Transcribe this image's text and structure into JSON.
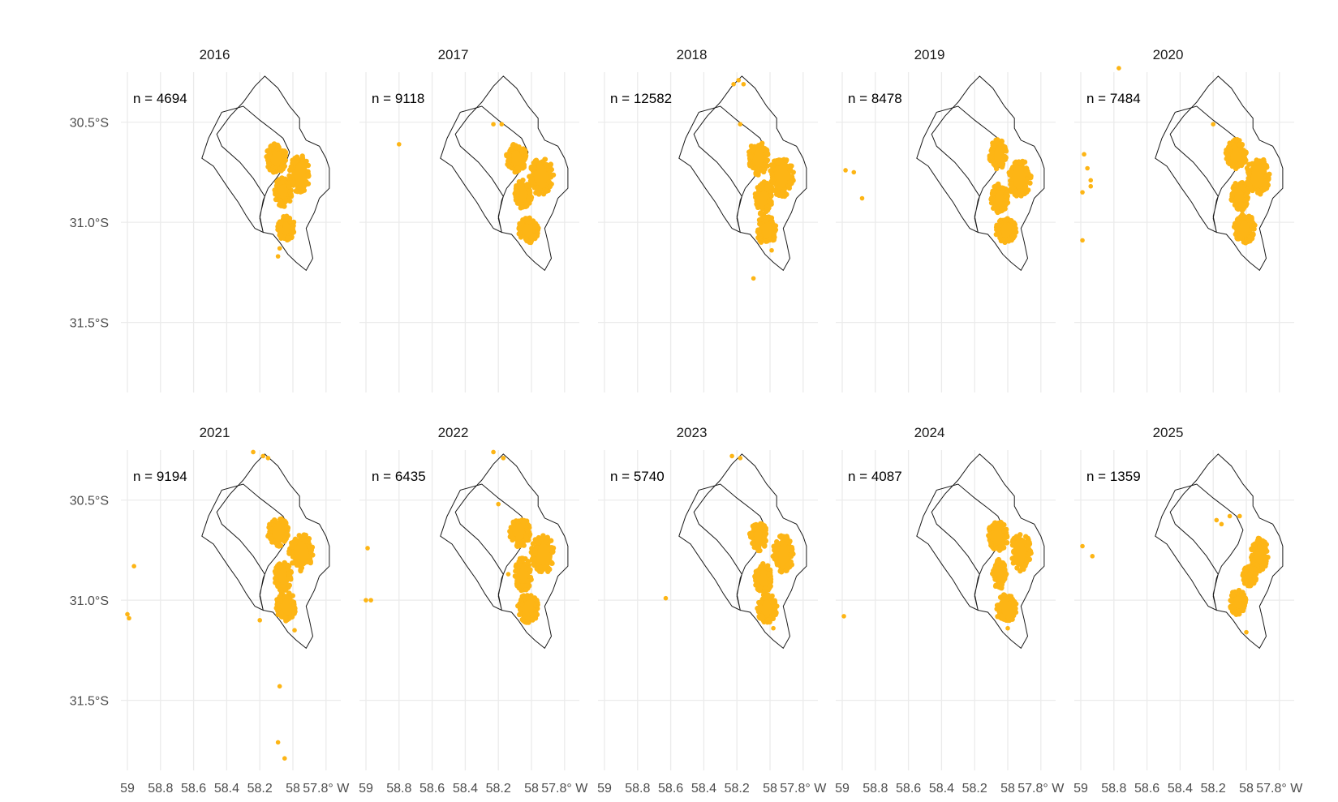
{
  "colors": {
    "points": "#FDB515",
    "grid": "#EBEBEB",
    "outline": "#1A1A1A"
  },
  "chart_data": {
    "type": "scatter",
    "facet_by": "year",
    "layout": "2 rows x 5 columns",
    "x_axis": {
      "ticks": [
        59,
        58.8,
        58.6,
        58.4,
        58.2,
        58,
        57.8
      ],
      "tick_labels": [
        "59",
        "58.8",
        "58.6",
        "58.4",
        "58.2",
        "58",
        "57.8° W"
      ],
      "range": [
        59.0,
        57.75
      ]
    },
    "y_axis": {
      "ticks": [
        30.5,
        31.0,
        31.5
      ],
      "tick_labels": [
        "30.5°S",
        "31.0°S",
        "31.5°S"
      ],
      "range": [
        30.25,
        31.85
      ]
    },
    "grid": true,
    "outline_polygon": [
      [
        58.17,
        30.27
      ],
      [
        58.09,
        30.33
      ],
      [
        58.02,
        30.42
      ],
      [
        57.96,
        30.48
      ],
      [
        57.96,
        30.53
      ],
      [
        57.92,
        30.59
      ],
      [
        57.84,
        30.62
      ],
      [
        57.8,
        30.68
      ],
      [
        57.78,
        30.73
      ],
      [
        57.78,
        30.83
      ],
      [
        57.84,
        30.88
      ],
      [
        57.87,
        30.95
      ],
      [
        57.92,
        31.03
      ],
      [
        57.9,
        31.1
      ],
      [
        57.88,
        31.18
      ],
      [
        57.92,
        31.24
      ],
      [
        57.98,
        31.2
      ],
      [
        58.03,
        31.16
      ],
      [
        58.08,
        31.1
      ],
      [
        58.12,
        31.06
      ],
      [
        58.18,
        31.05
      ],
      [
        58.2,
        30.98
      ],
      [
        58.18,
        30.89
      ],
      [
        58.15,
        30.83
      ],
      [
        58.1,
        30.78
      ],
      [
        58.05,
        30.72
      ],
      [
        58.02,
        30.65
      ],
      [
        58.06,
        30.58
      ],
      [
        58.12,
        30.54
      ],
      [
        58.2,
        30.49
      ],
      [
        58.3,
        30.42
      ],
      [
        58.43,
        30.45
      ],
      [
        58.51,
        30.58
      ],
      [
        58.55,
        30.68
      ],
      [
        58.48,
        30.72
      ],
      [
        58.39,
        30.83
      ],
      [
        58.33,
        30.9
      ],
      [
        58.28,
        30.97
      ],
      [
        58.23,
        31.03
      ],
      [
        58.18,
        31.05
      ],
      [
        58.2,
        30.97
      ],
      [
        58.17,
        30.87
      ],
      [
        58.24,
        30.78
      ],
      [
        58.32,
        30.7
      ],
      [
        58.43,
        30.62
      ],
      [
        58.46,
        30.56
      ],
      [
        58.38,
        30.47
      ],
      [
        58.3,
        30.4
      ],
      [
        58.23,
        30.32
      ]
    ],
    "panels": [
      {
        "year": "2016",
        "n_label": "n = 4694",
        "dense_regions": [
          [
            57.96,
            30.76,
            0.06,
            0.09
          ],
          [
            58.1,
            30.68,
            0.06,
            0.07
          ],
          [
            58.06,
            30.85,
            0.05,
            0.07
          ],
          [
            58.04,
            31.03,
            0.05,
            0.06
          ]
        ],
        "outliers": [
          [
            58.09,
            31.17
          ],
          [
            58.08,
            31.13
          ]
        ]
      },
      {
        "year": "2017",
        "n_label": "n = 9118",
        "dense_regions": [
          [
            57.94,
            30.77,
            0.07,
            0.09
          ],
          [
            58.09,
            30.68,
            0.06,
            0.07
          ],
          [
            58.05,
            30.86,
            0.05,
            0.07
          ],
          [
            58.02,
            31.04,
            0.06,
            0.06
          ]
        ],
        "outliers": [
          [
            58.8,
            30.61
          ],
          [
            58.23,
            30.51
          ],
          [
            58.18,
            30.51
          ]
        ]
      },
      {
        "year": "2018",
        "n_label": "n = 12582",
        "dense_regions": [
          [
            57.93,
            30.77,
            0.07,
            0.1
          ],
          [
            58.07,
            30.68,
            0.06,
            0.08
          ],
          [
            58.04,
            30.88,
            0.05,
            0.08
          ],
          [
            58.02,
            31.04,
            0.06,
            0.07
          ]
        ],
        "outliers": [
          [
            58.22,
            30.31
          ],
          [
            58.16,
            30.31
          ],
          [
            58.19,
            30.29
          ],
          [
            58.18,
            30.51
          ],
          [
            58.1,
            31.28
          ],
          [
            57.99,
            31.14
          ]
        ]
      },
      {
        "year": "2019",
        "n_label": "n = 8478",
        "dense_regions": [
          [
            57.93,
            30.78,
            0.07,
            0.09
          ],
          [
            58.06,
            30.66,
            0.05,
            0.07
          ],
          [
            58.05,
            30.88,
            0.05,
            0.07
          ],
          [
            58.01,
            31.04,
            0.06,
            0.06
          ]
        ],
        "outliers": [
          [
            58.98,
            30.74
          ],
          [
            58.93,
            30.75
          ],
          [
            58.88,
            30.88
          ]
        ]
      },
      {
        "year": "2020",
        "n_label": "n = 7484",
        "dense_regions": [
          [
            57.93,
            30.77,
            0.07,
            0.09
          ],
          [
            58.06,
            30.66,
            0.06,
            0.07
          ],
          [
            58.04,
            30.87,
            0.05,
            0.07
          ],
          [
            58.01,
            31.03,
            0.06,
            0.07
          ]
        ],
        "outliers": [
          [
            58.98,
            30.66
          ],
          [
            58.96,
            30.73
          ],
          [
            58.94,
            30.79
          ],
          [
            58.94,
            30.82
          ],
          [
            58.99,
            30.85
          ],
          [
            58.99,
            31.09
          ],
          [
            58.77,
            30.23
          ],
          [
            58.2,
            30.51
          ]
        ]
      },
      {
        "year": "2021",
        "n_label": "n = 9194",
        "dense_regions": [
          [
            57.95,
            30.76,
            0.07,
            0.09
          ],
          [
            58.09,
            30.66,
            0.06,
            0.07
          ],
          [
            58.06,
            30.88,
            0.05,
            0.07
          ],
          [
            58.04,
            31.03,
            0.06,
            0.07
          ]
        ],
        "outliers": [
          [
            58.96,
            30.83
          ],
          [
            59.0,
            31.07
          ],
          [
            58.99,
            31.09
          ],
          [
            58.24,
            30.26
          ],
          [
            58.18,
            30.28
          ],
          [
            58.15,
            30.29
          ],
          [
            58.08,
            31.43
          ],
          [
            58.09,
            31.71
          ],
          [
            58.05,
            31.79
          ],
          [
            58.2,
            31.1
          ],
          [
            57.99,
            31.15
          ]
        ]
      },
      {
        "year": "2022",
        "n_label": "n = 6435",
        "dense_regions": [
          [
            57.93,
            30.77,
            0.07,
            0.09
          ],
          [
            58.07,
            30.66,
            0.06,
            0.07
          ],
          [
            58.05,
            30.87,
            0.05,
            0.08
          ],
          [
            58.02,
            31.04,
            0.06,
            0.07
          ]
        ],
        "outliers": [
          [
            58.99,
            30.74
          ],
          [
            59.0,
            31.0
          ],
          [
            58.97,
            31.0
          ],
          [
            58.23,
            30.26
          ],
          [
            58.17,
            30.29
          ],
          [
            58.2,
            30.52
          ],
          [
            58.14,
            30.87
          ]
        ]
      },
      {
        "year": "2023",
        "n_label": "n = 5740",
        "dense_regions": [
          [
            57.92,
            30.77,
            0.06,
            0.09
          ],
          [
            58.07,
            30.68,
            0.05,
            0.07
          ],
          [
            58.04,
            30.89,
            0.05,
            0.07
          ],
          [
            58.02,
            31.04,
            0.06,
            0.07
          ]
        ],
        "outliers": [
          [
            58.63,
            30.99
          ],
          [
            58.23,
            30.28
          ],
          [
            58.18,
            30.29
          ],
          [
            57.98,
            31.14
          ]
        ]
      },
      {
        "year": "2024",
        "n_label": "n = 4087",
        "dense_regions": [
          [
            57.92,
            30.76,
            0.06,
            0.09
          ],
          [
            58.06,
            30.68,
            0.06,
            0.07
          ],
          [
            58.05,
            30.87,
            0.04,
            0.07
          ],
          [
            58.01,
            31.04,
            0.06,
            0.07
          ]
        ],
        "outliers": [
          [
            58.99,
            31.08
          ],
          [
            58.0,
            31.14
          ]
        ]
      },
      {
        "year": "2025",
        "n_label": "n = 1359",
        "dense_regions": [
          [
            57.92,
            30.77,
            0.05,
            0.08
          ],
          [
            58.05,
            31.01,
            0.05,
            0.06
          ],
          [
            57.98,
            30.88,
            0.04,
            0.05
          ]
        ],
        "outliers": [
          [
            58.99,
            30.73
          ],
          [
            58.93,
            30.78
          ],
          [
            58.15,
            30.62
          ],
          [
            58.1,
            30.58
          ],
          [
            58.04,
            30.58
          ],
          [
            58.18,
            30.6
          ],
          [
            58.0,
            31.16
          ]
        ]
      }
    ]
  }
}
